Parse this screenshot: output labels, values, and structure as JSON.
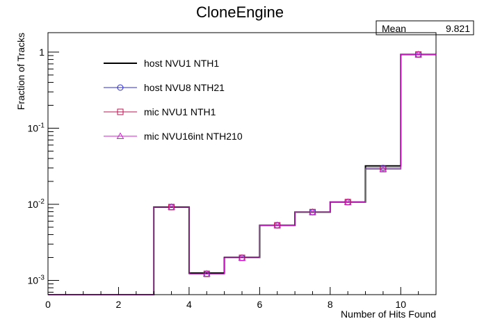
{
  "chart_data": {
    "type": "step",
    "title": "CloneEngine",
    "xlabel": "Number of Hits Found",
    "ylabel": "Fraction of Tracks",
    "xlim": [
      0,
      11
    ],
    "ylim": [
      0.00065,
      1.8
    ],
    "yscale": "log",
    "grid": false,
    "legend_position": "top-left",
    "x_ticks": [
      0,
      2,
      4,
      6,
      8,
      10
    ],
    "y_ticks": [
      {
        "value": 1,
        "base": "1",
        "exp": ""
      },
      {
        "value": 0.1,
        "base": "10",
        "exp": "-1"
      },
      {
        "value": 0.01,
        "base": "10",
        "exp": "-2"
      },
      {
        "value": 0.001,
        "base": "10",
        "exp": "-3"
      }
    ],
    "bin_edges": [
      0,
      1,
      2,
      3,
      4,
      5,
      6,
      7,
      8,
      9,
      10,
      11
    ],
    "series": [
      {
        "name": "host NVU1 NTH1",
        "marker": "none",
        "color": "#000000",
        "values": [
          0,
          0,
          0,
          0.0092,
          0.00125,
          0.002,
          0.0053,
          0.0079,
          0.0107,
          0.032,
          0.93
        ]
      },
      {
        "name": "host NVU8 NTH21",
        "marker": "circle",
        "color": "#2b2bd6",
        "values": [
          0,
          0,
          0,
          0.0092,
          0.00122,
          0.00198,
          0.0053,
          0.0079,
          0.0107,
          0.03,
          0.93
        ]
      },
      {
        "name": "mic NVU1 NTH1",
        "marker": "square",
        "color": "#c01050",
        "values": [
          0,
          0,
          0,
          0.0092,
          0.00122,
          0.00198,
          0.0053,
          0.0079,
          0.0107,
          0.029,
          0.93
        ]
      },
      {
        "name": "mic NVU16int NTH210",
        "marker": "triangle",
        "color": "#d020d0",
        "values": [
          0,
          0,
          0,
          0.0092,
          0.00122,
          0.00198,
          0.0053,
          0.0079,
          0.0107,
          0.029,
          0.93
        ]
      }
    ],
    "stats": {
      "label": "Mean",
      "value": "9.821"
    }
  }
}
